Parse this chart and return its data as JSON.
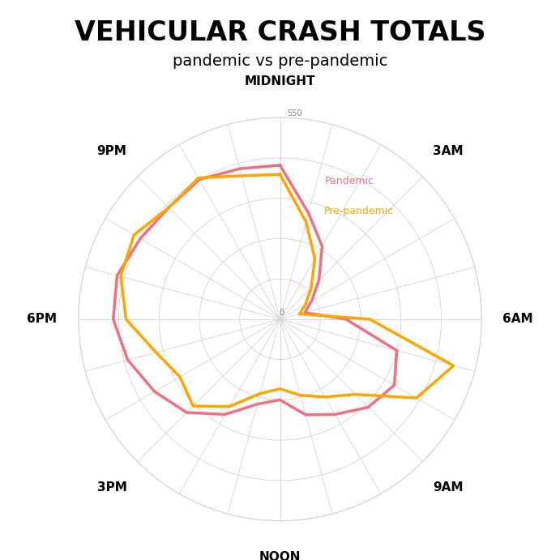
{
  "title": "VEHICULAR CRASH TOTALS",
  "subtitle": "pandemic vs pre-pandemic",
  "max_value": 550,
  "num_spokes": 24,
  "spoke_labels": [
    "MIDNIGHT",
    "3AM",
    "6AM",
    "9AM",
    "NOON",
    "3PM",
    "6PM",
    "9PM"
  ],
  "spoke_indices": [
    0,
    3,
    6,
    9,
    12,
    15,
    18,
    21
  ],
  "pandemic_color": "#F07080",
  "prepandemic_color": "#FFA500",
  "pandemic_label": "Pandemic",
  "prepandemic_label": "Pre-pandemic",
  "background_color": "#FFFFFF",
  "line_width": 2.5,
  "ring_values": [
    110,
    220,
    330,
    440,
    550
  ],
  "pandemic_values": [
    420,
    300,
    230,
    150,
    100,
    70,
    180,
    330,
    360,
    340,
    300,
    270,
    220,
    240,
    300,
    360,
    395,
    430,
    455,
    460,
    440,
    430,
    440,
    425
  ],
  "prepandemic_values": [
    395,
    275,
    190,
    120,
    80,
    55,
    245,
    490,
    430,
    290,
    245,
    215,
    190,
    210,
    275,
    335,
    315,
    350,
    420,
    450,
    460,
    430,
    445,
    405
  ],
  "title_fontsize": 24,
  "subtitle_fontsize": 14,
  "spoke_fontsize": 11,
  "legend_fontsize": 9,
  "ring_label_fontsize": 7
}
